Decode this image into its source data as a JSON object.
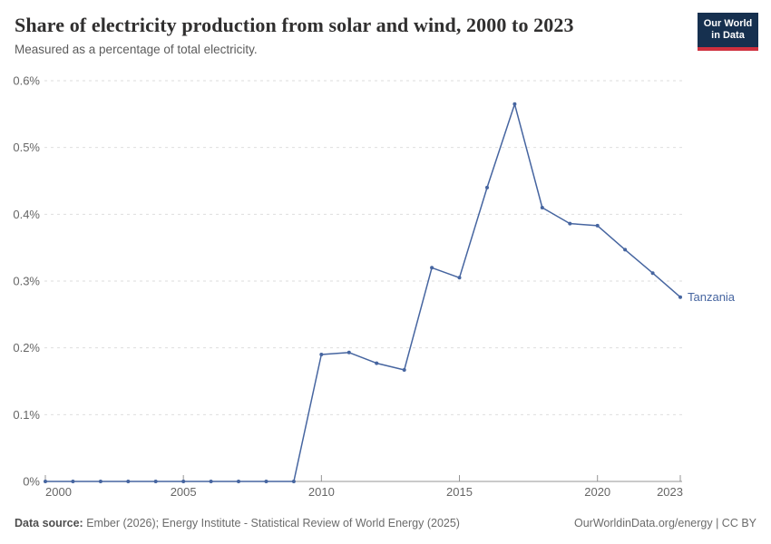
{
  "header": {
    "title": "Share of electricity production from solar and wind, 2000 to 2023",
    "subtitle": "Measured as a percentage of total electricity.",
    "logo": {
      "line1": "Our World",
      "line2": "in Data"
    }
  },
  "chart_data": {
    "type": "line",
    "title": "Share of electricity production from solar and wind, 2000 to 2023",
    "ylabel": "",
    "xlabel": "",
    "unit": "%",
    "grid": "horizontal-dashed",
    "legend_position": "end-of-line-label",
    "x": [
      2000,
      2001,
      2002,
      2003,
      2004,
      2005,
      2006,
      2007,
      2008,
      2009,
      2010,
      2011,
      2012,
      2013,
      2014,
      2015,
      2016,
      2017,
      2018,
      2019,
      2020,
      2021,
      2022,
      2023
    ],
    "series": [
      {
        "name": "Tanzania",
        "color": "#4665a0",
        "values": [
          0,
          0,
          0,
          0,
          0,
          0,
          0,
          0,
          0,
          0,
          0.19,
          0.193,
          0.177,
          0.167,
          0.32,
          0.305,
          0.44,
          0.565,
          0.41,
          0.386,
          0.383,
          0.347,
          0.312,
          0.276
        ]
      }
    ],
    "ylim": [
      0,
      0.6
    ],
    "xlim": [
      2000,
      2023
    ],
    "yticks": [
      {
        "value": 0,
        "label": "0%"
      },
      {
        "value": 0.1,
        "label": "0.1%"
      },
      {
        "value": 0.2,
        "label": "0.2%"
      },
      {
        "value": 0.3,
        "label": "0.3%"
      },
      {
        "value": 0.4,
        "label": "0.4%"
      },
      {
        "value": 0.5,
        "label": "0.5%"
      },
      {
        "value": 0.6,
        "label": "0.6%"
      }
    ],
    "xticks": [
      2000,
      2005,
      2010,
      2015,
      2020,
      2023
    ]
  },
  "colors": {
    "line": "#4665a0",
    "grid": "#dedede",
    "axis": "#949494",
    "tick_label": "#666666",
    "logo_bg": "#16304f",
    "logo_accent": "#cf303e"
  },
  "footer": {
    "source_label": "Data source:",
    "source_text": " Ember (2026); Energy Institute - Statistical Review of World Energy (2025)",
    "right_text": "OurWorldinData.org/energy | CC BY"
  }
}
